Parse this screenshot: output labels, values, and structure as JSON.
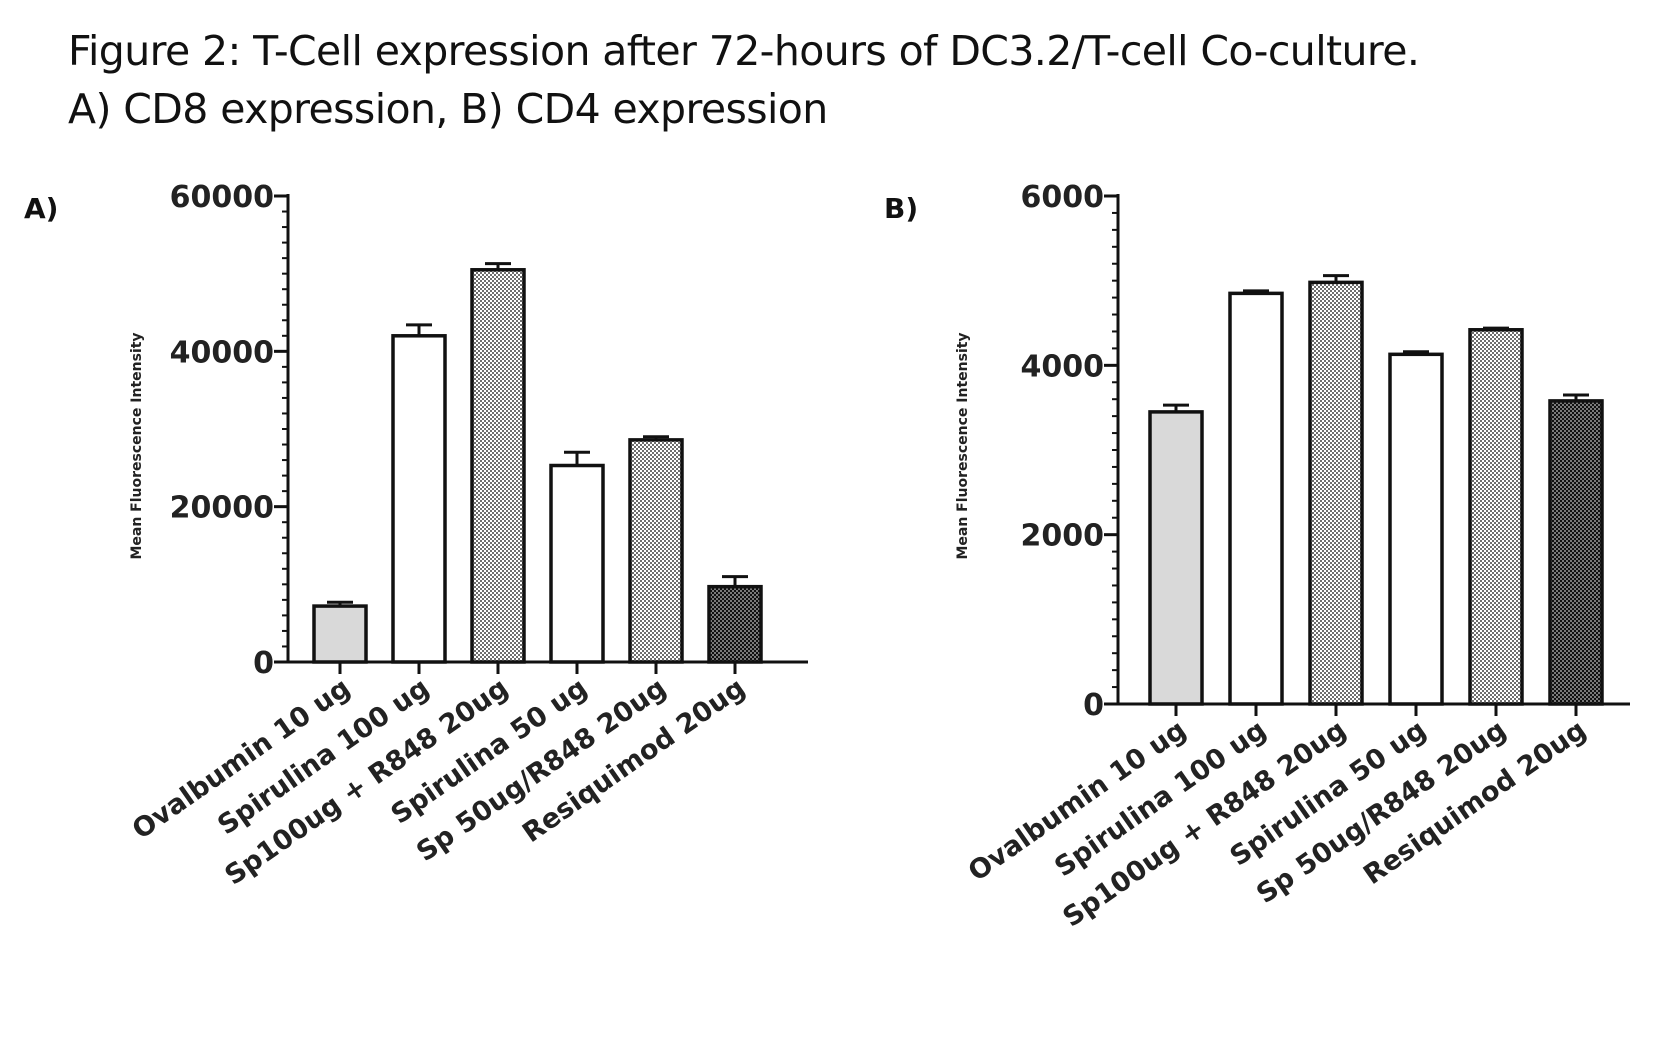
{
  "figure": {
    "title_line1": "Figure 2: T-Cell expression after 72-hours of DC3.2/T-cell Co-culture.",
    "title_line2": "A) CD8 expression, B) CD4 expression"
  },
  "colors": {
    "light_gray": "#d9d9d9",
    "white": "#ffffff",
    "medium_dotted": "#8c8c8c",
    "dark_dotted": "#333333",
    "axis": "#111111"
  },
  "chart_data": [
    {
      "type": "bar",
      "panel_label": "A)",
      "ylabel": "Mean Fluorescence Intensity",
      "ylim": [
        0,
        60000
      ],
      "yticks": [
        "0",
        "20000",
        "40000",
        "60000"
      ],
      "ytick_values": [
        0,
        20000,
        40000,
        60000
      ],
      "categories": [
        "Ovalbumin 10 ug",
        "Spirulina 100 ug",
        "Sp100ug + R848 20ug",
        "Spirulina 50 ug",
        "Sp 50ug/R848 20ug",
        "Resiquimod 20ug"
      ],
      "values": [
        7200,
        42000,
        50500,
        25300,
        28600,
        9700
      ],
      "errors": [
        500,
        1400,
        800,
        1700,
        400,
        1300
      ],
      "fills": [
        "light",
        "white",
        "medium-dots",
        "white",
        "medium-dots",
        "dark-dots"
      ],
      "grid": false
    },
    {
      "type": "bar",
      "panel_label": "B)",
      "ylabel": "Mean Fluorescence Intensity",
      "ylim": [
        0,
        6000
      ],
      "yticks": [
        "0",
        "2000",
        "4000",
        "6000"
      ],
      "ytick_values": [
        0,
        2000,
        4000,
        6000
      ],
      "categories": [
        "Ovalbumin 10 ug",
        "Spirulina 100 ug",
        "Sp100ug + R848 20ug",
        "Spirulina 50 ug",
        "Sp 50ug/R848 20ug",
        "Resiquimod 20ug"
      ],
      "values": [
        3450,
        4850,
        4980,
        4130,
        4420,
        3580
      ],
      "errors": [
        80,
        30,
        80,
        30,
        20,
        70
      ],
      "fills": [
        "light",
        "white",
        "medium-dots",
        "white",
        "medium-dots",
        "dark-dots"
      ],
      "grid": false
    }
  ]
}
